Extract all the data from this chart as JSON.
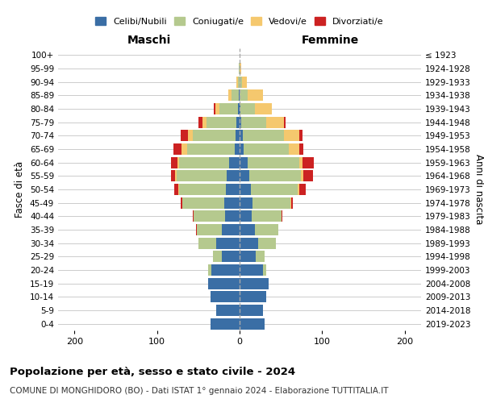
{
  "age_groups": [
    "0-4",
    "5-9",
    "10-14",
    "15-19",
    "20-24",
    "25-29",
    "30-34",
    "35-39",
    "40-44",
    "45-49",
    "50-54",
    "55-59",
    "60-64",
    "65-69",
    "70-74",
    "75-79",
    "80-84",
    "85-89",
    "90-94",
    "95-99",
    "100+"
  ],
  "birth_years": [
    "2019-2023",
    "2014-2018",
    "2009-2013",
    "2004-2008",
    "1999-2003",
    "1994-1998",
    "1989-1993",
    "1984-1988",
    "1979-1983",
    "1974-1978",
    "1969-1973",
    "1964-1968",
    "1959-1963",
    "1954-1958",
    "1949-1953",
    "1944-1948",
    "1939-1943",
    "1934-1938",
    "1929-1933",
    "1924-1928",
    "≤ 1923"
  ],
  "maschi": {
    "celibi": [
      35,
      28,
      35,
      38,
      34,
      22,
      28,
      22,
      18,
      19,
      17,
      16,
      13,
      6,
      5,
      4,
      2,
      1,
      0,
      0,
      0
    ],
    "coniugati": [
      0,
      0,
      0,
      0,
      4,
      10,
      22,
      30,
      38,
      50,
      56,
      60,
      60,
      58,
      52,
      36,
      22,
      9,
      2,
      1,
      0
    ],
    "vedovi": [
      0,
      0,
      0,
      0,
      0,
      0,
      0,
      0,
      0,
      0,
      1,
      2,
      2,
      6,
      6,
      5,
      5,
      4,
      2,
      0,
      0
    ],
    "divorziati": [
      0,
      0,
      0,
      0,
      0,
      0,
      0,
      1,
      1,
      2,
      5,
      5,
      8,
      10,
      8,
      5,
      2,
      0,
      0,
      0,
      0
    ]
  },
  "femmine": {
    "nubili": [
      30,
      28,
      32,
      35,
      28,
      20,
      22,
      19,
      15,
      16,
      14,
      12,
      10,
      5,
      4,
      2,
      1,
      0,
      0,
      0,
      0
    ],
    "coniugate": [
      0,
      0,
      0,
      0,
      4,
      10,
      22,
      28,
      36,
      46,
      56,
      62,
      62,
      55,
      50,
      30,
      18,
      10,
      3,
      0,
      0
    ],
    "vedove": [
      0,
      0,
      0,
      0,
      0,
      0,
      0,
      0,
      0,
      1,
      2,
      3,
      4,
      12,
      18,
      22,
      20,
      18,
      6,
      2,
      0
    ],
    "divorziate": [
      0,
      0,
      0,
      0,
      0,
      0,
      0,
      0,
      1,
      2,
      8,
      12,
      14,
      5,
      4,
      2,
      0,
      0,
      0,
      0,
      0
    ]
  },
  "colors": {
    "celibi": "#3a6ea5",
    "coniugati": "#b5c98e",
    "vedovi": "#f5c86e",
    "divorziati": "#cc2222"
  },
  "xlim": 220,
  "title_main": "Popolazione per età, sesso e stato civile - 2024",
  "title_sub": "COMUNE DI MONGHIDORO (BO) - Dati ISTAT 1° gennaio 2024 - Elaborazione TUTTITALIA.IT",
  "ylabel_left": "Fasce di età",
  "ylabel_right": "Anni di nascita",
  "label_maschi": "Maschi",
  "label_femmine": "Femmine",
  "legend_labels": [
    "Celibi/Nubili",
    "Coniugati/e",
    "Vedovi/e",
    "Divorziati/e"
  ],
  "background_color": "#ffffff",
  "grid_color": "#cccccc"
}
